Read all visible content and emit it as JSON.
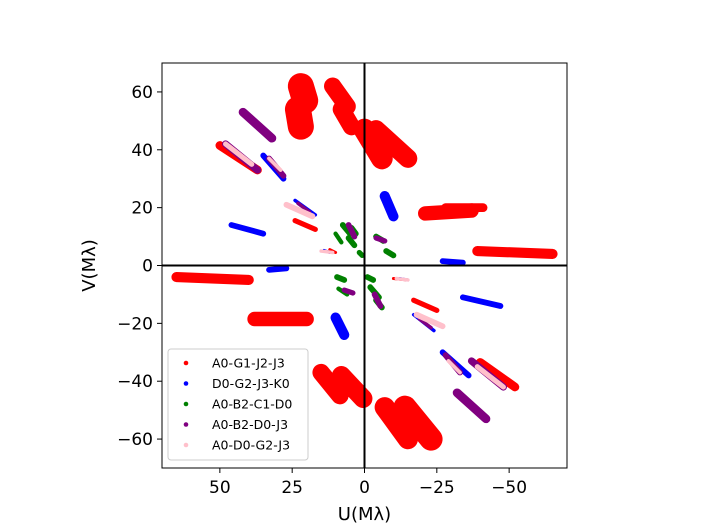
{
  "chart_data": {
    "type": "scatter",
    "title": "",
    "xlabel": "U(Mλ)",
    "ylabel": "V(Mλ)",
    "xlim": [
      70,
      -70
    ],
    "ylim": [
      -70,
      70
    ],
    "x_inverted": true,
    "xticks": [
      50,
      25,
      0,
      -25,
      -50
    ],
    "xtick_labels": [
      "50",
      "25",
      "0",
      "−25",
      "−50"
    ],
    "yticks": [
      60,
      40,
      20,
      0,
      -20,
      -40,
      -60
    ],
    "ytick_labels": [
      "60",
      "40",
      "20",
      "0",
      "−20",
      "−40",
      "−60"
    ],
    "zero_lines": true,
    "grid": false,
    "legend_position": "lower-left",
    "series": [
      {
        "name": "A0-G1-J2-J3",
        "color": "#ff0000",
        "tracks": [
          {
            "u": [
              22.0,
              20.5
            ],
            "v": [
              62.0,
              57.0
            ],
            "w": 9.0
          },
          {
            "u": [
              23.0,
              22.0
            ],
            "v": [
              54.0,
              48.0
            ],
            "w": 9.0
          },
          {
            "u": [
              11.0,
              6.0
            ],
            "v": [
              62.0,
              55.0
            ],
            "w": 6.0
          },
          {
            "u": [
              8.0,
              4.5
            ],
            "v": [
              54.0,
              48.0
            ],
            "w": 6.0
          },
          {
            "u": [
              0.0,
              -6.0
            ],
            "v": [
              47.0,
              37.0
            ],
            "w": 7.5
          },
          {
            "u": [
              -4.0,
              -15.0
            ],
            "v": [
              47.0,
              37.0
            ],
            "w": 6.5
          },
          {
            "u": [
              -21.0,
              -37.0
            ],
            "v": [
              18.0,
              19.0
            ],
            "w": 5.0
          },
          {
            "u": [
              -28.0,
              -41.0
            ],
            "v": [
              20.0,
              20.0
            ],
            "w": 3.0
          },
          {
            "u": [
              -39.0,
              -65.0
            ],
            "v": [
              5.0,
              4.0
            ],
            "w": 3.5
          },
          {
            "u": [
              65.0,
              40.0
            ],
            "v": [
              -4.0,
              -5.0
            ],
            "w": 3.5
          },
          {
            "u": [
              38.0,
              20.0
            ],
            "v": [
              -18.5,
              -18.5
            ],
            "w": 5.0
          },
          {
            "u": [
              8.0,
              0.5
            ],
            "v": [
              -38.0,
              -46.0
            ],
            "w": 6.5
          },
          {
            "u": [
              15.0,
              8.5
            ],
            "v": [
              -37.0,
              -45.0
            ],
            "w": 6.0
          },
          {
            "u": [
              -7.0,
              -15.0
            ],
            "v": [
              -49.0,
              -60.0
            ],
            "w": 7.0
          },
          {
            "u": [
              -14.0,
              -23.0
            ],
            "v": [
              -49.0,
              -60.0
            ],
            "w": 8.0
          },
          {
            "u": [
              50.0,
              37.0
            ],
            "v": [
              41.5,
              33.0
            ],
            "w": 3.0
          },
          {
            "u": [
              -40.0,
              -52.0
            ],
            "v": [
              -33.5,
              -42.0
            ],
            "w": 3.0
          },
          {
            "u": [
              24.0,
              17.0
            ],
            "v": [
              15.5,
              12.5
            ],
            "w": 1.8
          },
          {
            "u": [
              -17.0,
              -25.0
            ],
            "v": [
              -12.0,
              -15.5
            ],
            "w": 1.8
          },
          {
            "u": [
              12.0,
              10.0
            ],
            "v": [
              5.5,
              4.5
            ],
            "w": 1.0
          },
          {
            "u": [
              -10.0,
              -15.0
            ],
            "v": [
              -4.5,
              -5.0
            ],
            "w": 1.0
          }
        ]
      },
      {
        "name": "D0-G2-J3-K0",
        "color": "#0000ff",
        "tracks": [
          {
            "u": [
              46.0,
              35.0
            ],
            "v": [
              14.0,
              11.0
            ],
            "w": 2.0
          },
          {
            "u": [
              -34.0,
              -47.0
            ],
            "v": [
              -11.0,
              -14.0
            ],
            "w": 2.0
          },
          {
            "u": [
              33.0,
              27.0
            ],
            "v": [
              -1.5,
              -1.0
            ],
            "w": 2.0
          },
          {
            "u": [
              -27.0,
              -34.0
            ],
            "v": [
              1.5,
              1.0
            ],
            "w": 2.0
          },
          {
            "u": [
              -7.0,
              -10.0
            ],
            "v": [
              24.0,
              17.0
            ],
            "w": 3.5
          },
          {
            "u": [
              10.0,
              7.0
            ],
            "v": [
              -18.0,
              -24.0
            ],
            "w": 3.5
          },
          {
            "u": [
              35.0,
              28.0
            ],
            "v": [
              38.0,
              30.0
            ],
            "w": 2.0
          },
          {
            "u": [
              -27.0,
              -36.0
            ],
            "v": [
              -30.0,
              -38.0
            ],
            "w": 2.0
          },
          {
            "u": [
              24.0,
              17.0
            ],
            "v": [
              22.5,
              17.5
            ],
            "w": 1.2
          },
          {
            "u": [
              -17.0,
              -24.0
            ],
            "v": [
              -17.0,
              -22.5
            ],
            "w": 1.2
          },
          {
            "u": [
              14.0,
              12.0
            ],
            "v": [
              5.2,
              4.5
            ],
            "w": 0.9
          },
          {
            "u": [
              -12.0,
              -15.0
            ],
            "v": [
              -4.5,
              -5.0
            ],
            "w": 0.9
          }
        ]
      },
      {
        "name": "A0-B2-C1-D0",
        "color": "#008000",
        "tracks": [
          {
            "u": [
              7.5,
              5.0
            ],
            "v": [
              14.0,
              11.0
            ],
            "w": 2.0
          },
          {
            "u": [
              4.5,
              3.0
            ],
            "v": [
              13.0,
              11.0
            ],
            "w": 2.0
          },
          {
            "u": [
              5.5,
              3.5
            ],
            "v": [
              9.5,
              7.0
            ],
            "w": 2.0
          },
          {
            "u": [
              10.0,
              8.0
            ],
            "v": [
              11.0,
              8.0
            ],
            "w": 1.5
          },
          {
            "u": [
              1.8,
              0.8
            ],
            "v": [
              4.5,
              3.5
            ],
            "w": 1.8
          },
          {
            "u": [
              -4.0,
              -6.5
            ],
            "v": [
              10.0,
              8.5
            ],
            "w": 2.0
          },
          {
            "u": [
              -7.5,
              -10.0
            ],
            "v": [
              5.0,
              3.5
            ],
            "w": 2.0
          },
          {
            "u": [
              9.5,
              7.0
            ],
            "v": [
              -4.0,
              -5.0
            ],
            "w": 2.0
          },
          {
            "u": [
              -1.0,
              -3.0
            ],
            "v": [
              -4.0,
              -5.0
            ],
            "w": 2.0
          },
          {
            "u": [
              -2.0,
              -5.0
            ],
            "v": [
              -7.5,
              -11.0
            ],
            "w": 2.0
          },
          {
            "u": [
              -4.0,
              -6.0
            ],
            "v": [
              -12.0,
              -14.5
            ],
            "w": 2.0
          },
          {
            "u": [
              9.0,
              6.0
            ],
            "v": [
              -8.0,
              -10.0
            ],
            "w": 1.5
          }
        ]
      },
      {
        "name": "A0-B2-D0-J3",
        "color": "#800080",
        "tracks": [
          {
            "u": [
              42.0,
              32.0
            ],
            "v": [
              53.0,
              44.0
            ],
            "w": 3.0
          },
          {
            "u": [
              -32.0,
              -42.0
            ],
            "v": [
              -44.0,
              -53.0
            ],
            "w": 3.0
          },
          {
            "u": [
              48.0,
              37.0
            ],
            "v": [
              42.0,
              33.0
            ],
            "w": 2.5
          },
          {
            "u": [
              -37.0,
              -48.0
            ],
            "v": [
              -33.0,
              -42.0
            ],
            "w": 2.5
          },
          {
            "u": [
              33.0,
              28.0
            ],
            "v": [
              37.0,
              31.0
            ],
            "w": 2.0
          },
          {
            "u": [
              -28.0,
              -33.0
            ],
            "v": [
              -31.0,
              -37.0
            ],
            "w": 2.0
          },
          {
            "u": [
              23.0,
              19.0
            ],
            "v": [
              21.5,
              18.5
            ],
            "w": 1.2
          },
          {
            "u": [
              -19.0,
              -23.0
            ],
            "v": [
              -18.5,
              -21.5
            ],
            "w": 1.2
          },
          {
            "u": [
              5.5,
              3.5
            ],
            "v": [
              14.0,
              10.0
            ],
            "w": 2.0
          },
          {
            "u": [
              -3.5,
              -5.5
            ],
            "v": [
              -10.0,
              -14.0
            ],
            "w": 2.0
          },
          {
            "u": [
              -4.0,
              -7.0
            ],
            "v": [
              9.5,
              8.5
            ],
            "w": 1.8
          },
          {
            "u": [
              7.0,
              4.0
            ],
            "v": [
              -8.5,
              -9.5
            ],
            "w": 1.8
          }
        ]
      },
      {
        "name": "A0-D0-G2-J3",
        "color": "#ffc0cb",
        "tracks": [
          {
            "u": [
              48.0,
              39.0
            ],
            "v": [
              42.0,
              35.0
            ],
            "w": 1.8
          },
          {
            "u": [
              -39.0,
              -48.0
            ],
            "v": [
              -35.0,
              -42.0
            ],
            "w": 1.8
          },
          {
            "u": [
              33.0,
              29.0
            ],
            "v": [
              37.0,
              33.0
            ],
            "w": 1.3
          },
          {
            "u": [
              -29.0,
              -33.0
            ],
            "v": [
              -33.0,
              -37.0
            ],
            "w": 1.3
          },
          {
            "u": [
              27.0,
              18.0
            ],
            "v": [
              21.0,
              17.0
            ],
            "w": 2.0
          },
          {
            "u": [
              -18.0,
              -27.0
            ],
            "v": [
              -17.0,
              -21.0
            ],
            "w": 2.0
          },
          {
            "u": [
              15.0,
              11.0
            ],
            "v": [
              5.0,
              4.5
            ],
            "w": 1.2
          },
          {
            "u": [
              -11.0,
              -15.0
            ],
            "v": [
              -4.5,
              -5.0
            ],
            "w": 1.2
          }
        ]
      }
    ]
  }
}
